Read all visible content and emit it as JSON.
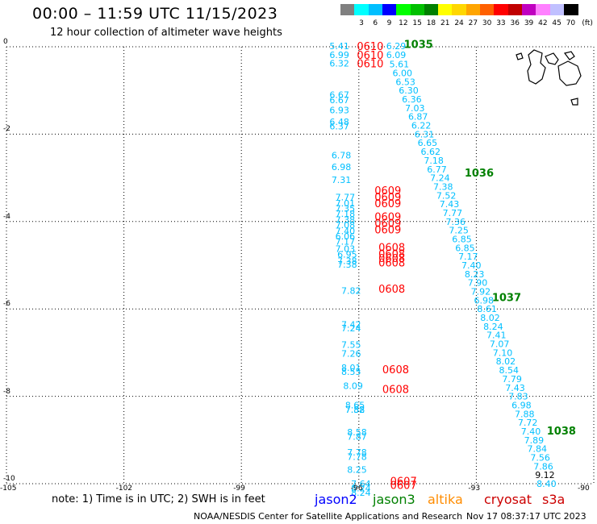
{
  "header": {
    "title": "00:00 – 11:59 UTC 11/15/2023",
    "subtitle": "12 hour collection of altimeter wave heights"
  },
  "scale": {
    "unit_label": "(ft)",
    "bins": [
      {
        "label": "",
        "color": "#808080"
      },
      {
        "label": "3",
        "color": "#00ffff"
      },
      {
        "label": "6",
        "color": "#00bfff"
      },
      {
        "label": "9",
        "color": "#0000ff"
      },
      {
        "label": "12",
        "color": "#00ff00"
      },
      {
        "label": "15",
        "color": "#00c000"
      },
      {
        "label": "18",
        "color": "#008000"
      },
      {
        "label": "21",
        "color": "#ffff00"
      },
      {
        "label": "24",
        "color": "#ffd700"
      },
      {
        "label": "27",
        "color": "#ffa500"
      },
      {
        "label": "30",
        "color": "#ff6000"
      },
      {
        "label": "33",
        "color": "#ff0000"
      },
      {
        "label": "36",
        "color": "#c00000"
      },
      {
        "label": "39",
        "color": "#c000c0"
      },
      {
        "label": "42",
        "color": "#ff80ff"
      },
      {
        "label": "45",
        "color": "#c0c0ff"
      },
      {
        "label": "70",
        "color": "#000000"
      }
    ]
  },
  "map": {
    "lon_range": [
      -105,
      -90
    ],
    "lat_range": [
      -10,
      0
    ],
    "x_ticks": [
      "-105",
      "-102",
      "-99",
      "-96",
      "-93",
      "-90"
    ],
    "y_ticks": [
      "0",
      "-2",
      "-4",
      "-6",
      "-8",
      "-10"
    ],
    "x_tick_values": [
      -105,
      -102,
      -99,
      -96,
      -93,
      -90
    ],
    "y_tick_values": [
      0,
      -2,
      -4,
      -6,
      -8,
      -10
    ],
    "grid": "dotted",
    "land": "Galapagos Islands outline, top-right"
  },
  "colors": {
    "jason2": "#0000ff",
    "jason3": "#008000",
    "altika": "#ff8c00",
    "cryosat": "#cc0000",
    "s3a": "#cc0000",
    "wave_value": "#00bfff",
    "track_time_red": "#ff0000",
    "track_time_green": "#008000"
  },
  "wave_values": [
    {
      "lon": -96.75,
      "lat": 0.02,
      "v": "5.41"
    },
    {
      "lon": -96.75,
      "lat": -0.18,
      "v": "6.99"
    },
    {
      "lon": -96.75,
      "lat": -0.38,
      "v": "6.32"
    },
    {
      "lon": -96.75,
      "lat": -1.1,
      "v": "6.67"
    },
    {
      "lon": -96.75,
      "lat": -1.22,
      "v": "6.67"
    },
    {
      "lon": -96.75,
      "lat": -1.45,
      "v": "6.93"
    },
    {
      "lon": -96.75,
      "lat": -1.72,
      "v": "6.48"
    },
    {
      "lon": -96.75,
      "lat": -1.82,
      "v": "6.37"
    },
    {
      "lon": -96.7,
      "lat": -2.48,
      "v": "6.78"
    },
    {
      "lon": -96.7,
      "lat": -2.75,
      "v": "6.98"
    },
    {
      "lon": -96.7,
      "lat": -3.04,
      "v": "7.31"
    },
    {
      "lon": -96.6,
      "lat": -3.44,
      "v": "7.77"
    },
    {
      "lon": -96.6,
      "lat": -3.58,
      "v": "7.01"
    },
    {
      "lon": -96.6,
      "lat": -3.7,
      "v": "7.35"
    },
    {
      "lon": -96.6,
      "lat": -3.82,
      "v": "7.18"
    },
    {
      "lon": -96.6,
      "lat": -3.96,
      "v": "7.38"
    },
    {
      "lon": -96.6,
      "lat": -4.08,
      "v": "7.08"
    },
    {
      "lon": -96.6,
      "lat": -4.22,
      "v": "7.40"
    },
    {
      "lon": -96.6,
      "lat": -4.34,
      "v": "6.06"
    },
    {
      "lon": -96.6,
      "lat": -4.46,
      "v": "7.17"
    },
    {
      "lon": -96.6,
      "lat": -4.62,
      "v": "7.03"
    },
    {
      "lon": -96.55,
      "lat": -4.75,
      "v": "6.95"
    },
    {
      "lon": -96.55,
      "lat": -4.9,
      "v": "7.38"
    },
    {
      "lon": -96.55,
      "lat": -4.98,
      "v": "7.38"
    },
    {
      "lon": -96.45,
      "lat": -5.58,
      "v": "7.82"
    },
    {
      "lon": -96.45,
      "lat": -6.36,
      "v": "7.42"
    },
    {
      "lon": -96.45,
      "lat": -6.44,
      "v": "7.24"
    },
    {
      "lon": -96.45,
      "lat": -6.82,
      "v": "7.55"
    },
    {
      "lon": -96.45,
      "lat": -7.02,
      "v": "7.26"
    },
    {
      "lon": -96.45,
      "lat": -7.34,
      "v": "8.01"
    },
    {
      "lon": -96.45,
      "lat": -7.44,
      "v": "8.55"
    },
    {
      "lon": -96.4,
      "lat": -7.76,
      "v": "8.09"
    },
    {
      "lon": -96.35,
      "lat": -8.2,
      "v": "8.65"
    },
    {
      "lon": -96.35,
      "lat": -8.3,
      "v": "7.58"
    },
    {
      "lon": -96.35,
      "lat": -8.3,
      "v": "7.82"
    },
    {
      "lon": -96.3,
      "lat": -8.82,
      "v": "8.58"
    },
    {
      "lon": -96.3,
      "lat": -8.92,
      "v": "7.87"
    },
    {
      "lon": -96.3,
      "lat": -9.28,
      "v": "7.78"
    },
    {
      "lon": -96.3,
      "lat": -9.38,
      "v": "7.78"
    },
    {
      "lon": -96.3,
      "lat": -9.68,
      "v": "8.25"
    },
    {
      "lon": -96.2,
      "lat": -10.0,
      "v": "7.64"
    },
    {
      "lon": -96.2,
      "lat": -10.1,
      "v": "8.24"
    },
    {
      "lon": -96.2,
      "lat": -10.2,
      "v": "8.24"
    },
    {
      "lon": -95.3,
      "lat": 0.02,
      "v": "6.29"
    },
    {
      "lon": -95.3,
      "lat": -0.18,
      "v": "6.09"
    },
    {
      "lon": -95.22,
      "lat": -0.4,
      "v": "5.61"
    },
    {
      "lon": -95.14,
      "lat": -0.6,
      "v": "6.00"
    },
    {
      "lon": -95.06,
      "lat": -0.8,
      "v": "6.53"
    },
    {
      "lon": -94.98,
      "lat": -1.0,
      "v": "6.30"
    },
    {
      "lon": -94.9,
      "lat": -1.2,
      "v": "6.36"
    },
    {
      "lon": -94.82,
      "lat": -1.4,
      "v": "7.03"
    },
    {
      "lon": -94.74,
      "lat": -1.6,
      "v": "6.87"
    },
    {
      "lon": -94.66,
      "lat": -1.8,
      "v": "6.22"
    },
    {
      "lon": -94.58,
      "lat": -2.0,
      "v": "6.31"
    },
    {
      "lon": -94.5,
      "lat": -2.2,
      "v": "6.65"
    },
    {
      "lon": -94.42,
      "lat": -2.4,
      "v": "6.62"
    },
    {
      "lon": -94.34,
      "lat": -2.6,
      "v": "7.18"
    },
    {
      "lon": -94.26,
      "lat": -2.8,
      "v": "6.77"
    },
    {
      "lon": -94.18,
      "lat": -3.0,
      "v": "7.24"
    },
    {
      "lon": -94.1,
      "lat": -3.2,
      "v": "7.38"
    },
    {
      "lon": -94.02,
      "lat": -3.4,
      "v": "7.52"
    },
    {
      "lon": -93.94,
      "lat": -3.6,
      "v": "7.43"
    },
    {
      "lon": -93.86,
      "lat": -3.8,
      "v": "7.77"
    },
    {
      "lon": -93.78,
      "lat": -4.0,
      "v": "7.36"
    },
    {
      "lon": -93.7,
      "lat": -4.2,
      "v": "7.25"
    },
    {
      "lon": -93.62,
      "lat": -4.4,
      "v": "6.85"
    },
    {
      "lon": -93.54,
      "lat": -4.6,
      "v": "6.85"
    },
    {
      "lon": -93.46,
      "lat": -4.8,
      "v": "7.17"
    },
    {
      "lon": -93.38,
      "lat": -5.0,
      "v": "7.40"
    },
    {
      "lon": -93.3,
      "lat": -5.2,
      "v": "8.23"
    },
    {
      "lon": -93.22,
      "lat": -5.4,
      "v": "7.90"
    },
    {
      "lon": -93.14,
      "lat": -5.6,
      "v": "7.92"
    },
    {
      "lon": -93.06,
      "lat": -5.8,
      "v": "6.98"
    },
    {
      "lon": -92.98,
      "lat": -6.0,
      "v": "8.61"
    },
    {
      "lon": -92.9,
      "lat": -6.2,
      "v": "8.02"
    },
    {
      "lon": -92.82,
      "lat": -6.4,
      "v": "8.24"
    },
    {
      "lon": -92.74,
      "lat": -6.6,
      "v": "7.41"
    },
    {
      "lon": -92.66,
      "lat": -6.8,
      "v": "7.07"
    },
    {
      "lon": -92.58,
      "lat": -7.0,
      "v": "7.10"
    },
    {
      "lon": -92.5,
      "lat": -7.2,
      "v": "8.02"
    },
    {
      "lon": -92.42,
      "lat": -7.4,
      "v": "8.54"
    },
    {
      "lon": -92.34,
      "lat": -7.6,
      "v": "7.79"
    },
    {
      "lon": -92.26,
      "lat": -7.8,
      "v": "7.43"
    },
    {
      "lon": -92.18,
      "lat": -8.0,
      "v": "7.83"
    },
    {
      "lon": -92.1,
      "lat": -8.2,
      "v": "6.98"
    },
    {
      "lon": -92.02,
      "lat": -8.4,
      "v": "7.88"
    },
    {
      "lon": -91.94,
      "lat": -8.6,
      "v": "7.72"
    },
    {
      "lon": -91.86,
      "lat": -8.8,
      "v": "7.40"
    },
    {
      "lon": -91.78,
      "lat": -9.0,
      "v": "7.89"
    },
    {
      "lon": -91.7,
      "lat": -9.2,
      "v": "7.84"
    },
    {
      "lon": -91.62,
      "lat": -9.4,
      "v": "7.56"
    },
    {
      "lon": -91.54,
      "lat": -9.6,
      "v": "7.86"
    },
    {
      "lon": -91.46,
      "lat": -10.0,
      "v": "8.40"
    }
  ],
  "dark_values": [
    {
      "lon": -91.5,
      "lat": -9.8,
      "v": "9.12"
    }
  ],
  "track_times_red": [
    {
      "lon": -96.05,
      "lat": 0.0,
      "v": "0610"
    },
    {
      "lon": -96.05,
      "lat": -0.2,
      "v": "0610"
    },
    {
      "lon": -96.05,
      "lat": -0.4,
      "v": "0610"
    },
    {
      "lon": -95.6,
      "lat": -3.3,
      "v": "0609"
    },
    {
      "lon": -95.6,
      "lat": -3.45,
      "v": "0609"
    },
    {
      "lon": -95.6,
      "lat": -3.6,
      "v": "0609"
    },
    {
      "lon": -95.6,
      "lat": -3.9,
      "v": "0609"
    },
    {
      "lon": -95.6,
      "lat": -4.05,
      "v": "0609"
    },
    {
      "lon": -95.6,
      "lat": -4.2,
      "v": "0609"
    },
    {
      "lon": -95.5,
      "lat": -4.6,
      "v": "0608"
    },
    {
      "lon": -95.5,
      "lat": -4.75,
      "v": "0608"
    },
    {
      "lon": -95.5,
      "lat": -4.85,
      "v": "0608"
    },
    {
      "lon": -95.5,
      "lat": -4.95,
      "v": "0608"
    },
    {
      "lon": -95.5,
      "lat": -5.55,
      "v": "0608"
    },
    {
      "lon": -95.4,
      "lat": -7.4,
      "v": "0608"
    },
    {
      "lon": -95.4,
      "lat": -7.85,
      "v": "0608"
    },
    {
      "lon": -95.2,
      "lat": -9.95,
      "v": "0607"
    },
    {
      "lon": -95.2,
      "lat": -10.05,
      "v": "0607"
    }
  ],
  "track_times_green": [
    {
      "lon": -94.85,
      "lat": 0.05,
      "v": "1035"
    },
    {
      "lon": -93.3,
      "lat": -2.9,
      "v": "1036"
    },
    {
      "lon": -92.6,
      "lat": -5.75,
      "v": "1037"
    },
    {
      "lon": -91.2,
      "lat": -8.8,
      "v": "1038"
    }
  ],
  "footer": {
    "note": "note:  1) Time is in UTC;  2) SWH is in feet",
    "credit": "NOAA/NESDIS Center for Satellite Applications and Research",
    "generated": "Nov 17 08:37:17 UTC 2023",
    "satellites": [
      {
        "key": "jason2",
        "label": "jason2"
      },
      {
        "key": "jason3",
        "label": "jason3"
      },
      {
        "key": "altika",
        "label": "altika"
      },
      {
        "key": "cryosat",
        "label": "cryosat"
      },
      {
        "key": "s3a",
        "label": "s3a"
      }
    ]
  }
}
